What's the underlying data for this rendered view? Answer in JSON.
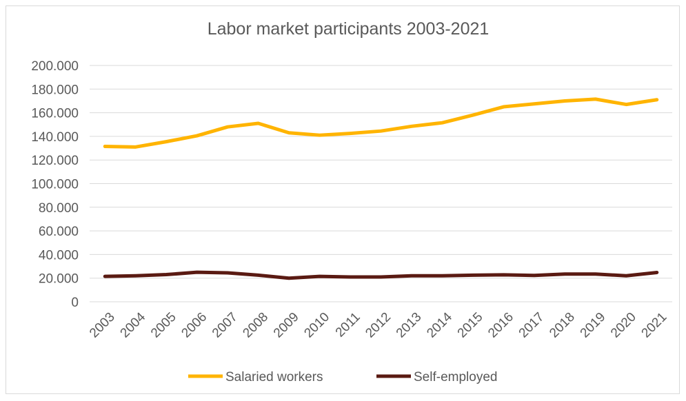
{
  "chart_data": {
    "type": "line",
    "title": "Labor market participants 2003-2021",
    "xlabel": "",
    "ylabel": "",
    "categories": [
      "2003",
      "2004",
      "2005",
      "2006",
      "2007",
      "2008",
      "2009",
      "2010",
      "2011",
      "2012",
      "2013",
      "2014",
      "2015",
      "2016",
      "2017",
      "2018",
      "2019",
      "2020",
      "2021"
    ],
    "ylim": [
      0,
      200000
    ],
    "yticks": [
      0,
      20000,
      40000,
      60000,
      80000,
      100000,
      120000,
      140000,
      160000,
      180000,
      200000
    ],
    "ytick_labels": [
      "0",
      "20.000",
      "40.000",
      "60.000",
      "80.000",
      "100.000",
      "120.000",
      "140.000",
      "160.000",
      "180.000",
      "200.000"
    ],
    "grid": true,
    "legend_position": "bottom",
    "series": [
      {
        "name": "Salaried workers",
        "color": "#FFB400",
        "values": [
          131500,
          131000,
          135500,
          140500,
          148000,
          151000,
          143000,
          141000,
          142500,
          144500,
          148500,
          151500,
          158000,
          165000,
          167500,
          170000,
          171500,
          167000,
          171000
        ]
      },
      {
        "name": "Self-employed",
        "color": "#5A1A12",
        "values": [
          21500,
          22000,
          23000,
          25000,
          24500,
          22500,
          20000,
          21500,
          21000,
          21000,
          22000,
          22000,
          22500,
          22800,
          22300,
          23500,
          23500,
          22000,
          24800
        ]
      }
    ]
  }
}
